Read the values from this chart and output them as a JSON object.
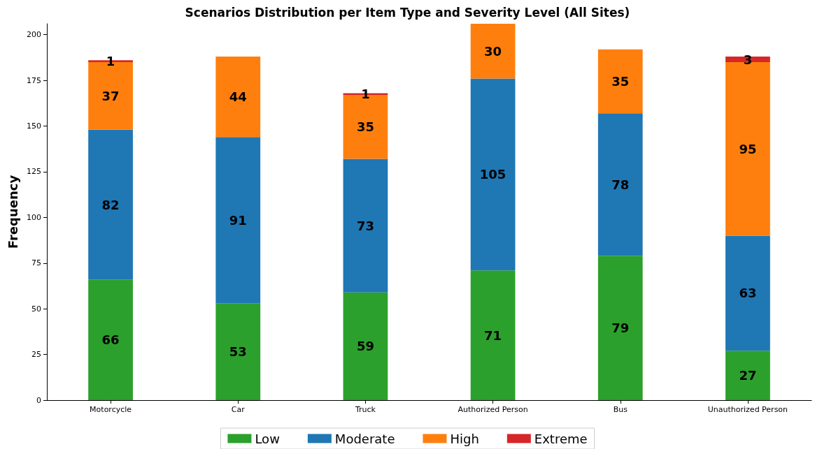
{
  "chart_data": {
    "type": "bar",
    "title": "Scenarios Distribution per Item Type and Severity Level (All Sites)",
    "ylabel": "Frequency",
    "categories": [
      "Motorcycle",
      "Car",
      "Truck",
      "Authorized Person",
      "Bus",
      "Unauthorized Person"
    ],
    "series": [
      {
        "name": "Low",
        "color": "#2ca02c",
        "values": [
          66,
          53,
          59,
          71,
          79,
          27
        ]
      },
      {
        "name": "Moderate",
        "color": "#1f77b4",
        "values": [
          82,
          91,
          73,
          105,
          78,
          63
        ]
      },
      {
        "name": "High",
        "color": "#ff7f0e",
        "values": [
          37,
          44,
          35,
          30,
          35,
          95
        ]
      },
      {
        "name": "Extreme",
        "color": "#d62728",
        "values": [
          1,
          null,
          1,
          null,
          null,
          3
        ]
      }
    ],
    "stacked": true,
    "data_labels": true,
    "ylim": [
      0,
      206
    ],
    "yticks": [
      0,
      25,
      50,
      75,
      100,
      125,
      150,
      175,
      200
    ],
    "grid": false,
    "legend": "bottom"
  }
}
